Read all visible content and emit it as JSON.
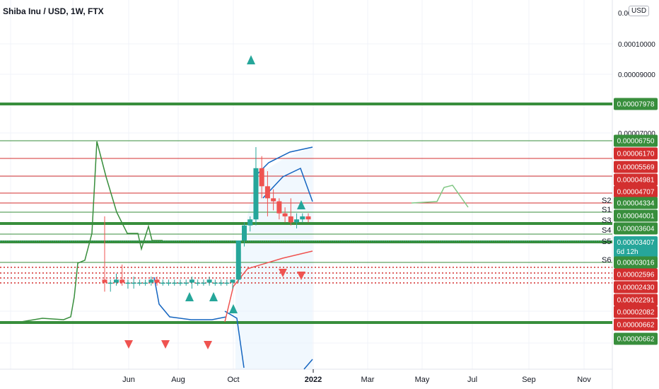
{
  "header": {
    "title": "Shiba Inu / USD, 1W, FTX",
    "currency": "USD"
  },
  "colors": {
    "up": "#26a69a",
    "down": "#ef5350",
    "green_line": "#388e3c",
    "red_line": "#d32f2f",
    "blue_line": "#2962ff",
    "grid": "#f0f3fa"
  },
  "chart_data": {
    "type": "candlestick",
    "title": "Shiba Inu / USD, 1W, FTX",
    "ylim": [
      3.1e-06,
      1.12e-05
    ],
    "x_ticks": [
      "Jun",
      "Aug",
      "Oct",
      "2022",
      "Mar",
      "May",
      "Jul",
      "Sep",
      "Nov"
    ],
    "y_ticks": [
      "0.00010000",
      "0.00009000",
      "0.00007000"
    ],
    "candles": [
      {
        "o": 4.5e-06,
        "h": 6.6e-06,
        "l": 4.1e-06,
        "c": 4.4e-06
      },
      {
        "o": 4.4e-06,
        "h": 4.5e-06,
        "l": 4.1e-06,
        "c": 4.4e-06
      },
      {
        "o": 4.4e-06,
        "h": 4.7e-06,
        "l": 4.3e-06,
        "c": 4.5e-06
      },
      {
        "o": 4.5e-06,
        "h": 5e-06,
        "l": 4.3e-06,
        "c": 4.4e-06
      },
      {
        "o": 4.4e-06,
        "h": 4.5e-06,
        "l": 4.2e-06,
        "c": 4.4e-06
      },
      {
        "o": 4.4e-06,
        "h": 4.6e-06,
        "l": 4.2e-06,
        "c": 4.4e-06
      },
      {
        "o": 4.4e-06,
        "h": 4.5e-06,
        "l": 4.3e-06,
        "c": 4.4e-06
      },
      {
        "o": 4.4e-06,
        "h": 4.5e-06,
        "l": 4.3e-06,
        "c": 4.4e-06
      },
      {
        "o": 4.4e-06,
        "h": 4.6e-06,
        "l": 4.3e-06,
        "c": 4.5e-06
      },
      {
        "o": 4.5e-06,
        "h": 4.6e-06,
        "l": 4.3e-06,
        "c": 4.4e-06
      },
      {
        "o": 4.4e-06,
        "h": 4.5e-06,
        "l": 4.3e-06,
        "c": 4.4e-06
      },
      {
        "o": 4.4e-06,
        "h": 4.5e-06,
        "l": 4.3e-06,
        "c": 4.4e-06
      },
      {
        "o": 4.4e-06,
        "h": 4.5e-06,
        "l": 4.3e-06,
        "c": 4.4e-06
      },
      {
        "o": 4.4e-06,
        "h": 4.5e-06,
        "l": 4.3e-06,
        "c": 4.4e-06
      },
      {
        "o": 4.4e-06,
        "h": 4.5e-06,
        "l": 4.3e-06,
        "c": 4.4e-06
      },
      {
        "o": 4.4e-06,
        "h": 4.6e-06,
        "l": 4.2e-06,
        "c": 4.5e-06
      },
      {
        "o": 4.4e-06,
        "h": 4.5e-06,
        "l": 4.3e-06,
        "c": 4.4e-06
      },
      {
        "o": 4.4e-06,
        "h": 4.5e-06,
        "l": 4.3e-06,
        "c": 4.4e-06
      },
      {
        "o": 4.4e-06,
        "h": 4.6e-06,
        "l": 4.3e-06,
        "c": 4.5e-06
      },
      {
        "o": 4.4e-06,
        "h": 4.5e-06,
        "l": 4.3e-06,
        "c": 4.4e-06
      },
      {
        "o": 4.4e-06,
        "h": 4.5e-06,
        "l": 4.3e-06,
        "c": 4.4e-06
      },
      {
        "o": 4.4e-06,
        "h": 4.5e-06,
        "l": 4.3e-06,
        "c": 4.4e-06
      },
      {
        "o": 4.4e-06,
        "h": 4.5e-06,
        "l": 4.2e-06,
        "c": 4.5e-06
      },
      {
        "o": 4.5e-06,
        "h": 5.8e-06,
        "l": 4.4e-06,
        "c": 5.8e-06
      },
      {
        "o": 5.8e-06,
        "h": 6.4e-06,
        "l": 5.6e-06,
        "c": 6.3e-06
      },
      {
        "o": 6.3e-06,
        "h": 6.6e-06,
        "l": 6.1e-06,
        "c": 6.5e-06
      },
      {
        "o": 6.5e-06,
        "h": 8.9e-06,
        "l": 6.3e-06,
        "c": 8.2e-06
      },
      {
        "o": 8.2e-06,
        "h": 8.6e-06,
        "l": 7.2e-06,
        "c": 7.6e-06
      },
      {
        "o": 7.6e-06,
        "h": 8.1e-06,
        "l": 6.6e-06,
        "c": 7.2e-06
      },
      {
        "o": 7.2e-06,
        "h": 7.5e-06,
        "l": 6.8e-06,
        "c": 7.1e-06
      },
      {
        "o": 7.1e-06,
        "h": 7.2e-06,
        "l": 6.5e-06,
        "c": 6.7e-06
      },
      {
        "o": 6.7e-06,
        "h": 6.9e-06,
        "l": 6.4e-06,
        "c": 6.6e-06
      },
      {
        "o": 6.6e-06,
        "h": 7.2e-06,
        "l": 6.3e-06,
        "c": 6.4e-06
      },
      {
        "o": 6.4e-06,
        "h": 6.7e-06,
        "l": 6.2e-06,
        "c": 6.5e-06
      },
      {
        "o": 6.5e-06,
        "h": 6.7e-06,
        "l": 6.4e-06,
        "c": 6.6e-06
      },
      {
        "o": 6.6e-06,
        "h": 6.7e-06,
        "l": 6.4e-06,
        "c": 6.5e-06
      }
    ],
    "levels": [
      {
        "value": 7.978e-05,
        "label": "0.00007978",
        "color": "#388e3c",
        "kind": "thick"
      },
      {
        "value": 6.75e-05,
        "label": "0.00006750",
        "color": "#388e3c",
        "kind": "thin"
      },
      {
        "value": 6.17e-05,
        "label": "0.00006170",
        "color": "#d32f2f",
        "kind": "thin"
      },
      {
        "value": 5.569e-05,
        "label": "0.00005569",
        "color": "#d32f2f",
        "kind": "thin"
      },
      {
        "value": 4.981e-05,
        "label": "0.00004981",
        "color": "#d32f2f",
        "kind": "thin"
      },
      {
        "value": 4.707e-05,
        "label": "0.00004707",
        "color": "#d32f2f",
        "kind": "thin"
      },
      {
        "value": 4.334e-05,
        "label": "0.00004334",
        "color": "#388e3c",
        "kind": "thin",
        "tag": "S2"
      },
      {
        "value": 4.001e-05,
        "label": "0.00004001",
        "color": "#388e3c",
        "kind": "thick",
        "tag": "S1"
      },
      {
        "value": 3.604e-05,
        "label": "0.00003604",
        "color": "#388e3c",
        "kind": "thin",
        "tag": "S3"
      },
      {
        "value": 3.407e-05,
        "label": "0.00003407",
        "color": "#388e3c",
        "kind": "thick",
        "tag": "S4"
      },
      {
        "value": 3.016e-05,
        "label": "0.00003016",
        "color": "#388e3c",
        "kind": "thin",
        "tag": "S5"
      },
      {
        "value": 2.596e-05,
        "label": "0.00002596",
        "color": "#d32f2f",
        "kind": "dotted",
        "tag": "S6"
      },
      {
        "value": 2.43e-05,
        "label": "0.00002430",
        "color": "#d32f2f",
        "kind": "dotted"
      },
      {
        "value": 2.291e-05,
        "label": "0.00002291",
        "color": "#d32f2f",
        "kind": "dotted"
      },
      {
        "value": 2.082e-05,
        "label": "0.00002082",
        "color": "#d32f2f",
        "kind": "dotted"
      },
      {
        "value": 6.62e-06,
        "label": "0.00000662",
        "color": "#388e3c",
        "kind": "thick"
      }
    ],
    "price_labels": [
      {
        "text": "0.00007978",
        "bg": "#388e3c"
      },
      {
        "text": "0.00006750",
        "bg": "#388e3c"
      },
      {
        "text": "0.00006170",
        "bg": "#d32f2f"
      },
      {
        "text": "0.00005569",
        "bg": "#d32f2f"
      },
      {
        "text": "0.00004981",
        "bg": "#d32f2f"
      },
      {
        "text": "0.00004707",
        "bg": "#d32f2f"
      },
      {
        "text": "0.00004334",
        "bg": "#388e3c"
      },
      {
        "text": "0.00004001",
        "bg": "#388e3c"
      },
      {
        "text": "0.00003604",
        "bg": "#388e3c"
      },
      {
        "text": "0.00003407",
        "bg": "#26a69a",
        "sub": "6d 12h"
      },
      {
        "text": "0.00003016",
        "bg": "#388e3c"
      },
      {
        "text": "0.00002596",
        "bg": "#d32f2f"
      },
      {
        "text": "0.00002430",
        "bg": "#d32f2f"
      },
      {
        "text": "0.00002291",
        "bg": "#d32f2f"
      },
      {
        "text": "0.00002082",
        "bg": "#d32f2f"
      },
      {
        "text": "0.00000662",
        "bg": "#d32f2f"
      },
      {
        "text": "0.00000662",
        "bg": "#388e3c"
      }
    ],
    "tags": [
      "S2",
      "S1",
      "S3",
      "S4",
      "S5",
      "S6"
    ]
  }
}
